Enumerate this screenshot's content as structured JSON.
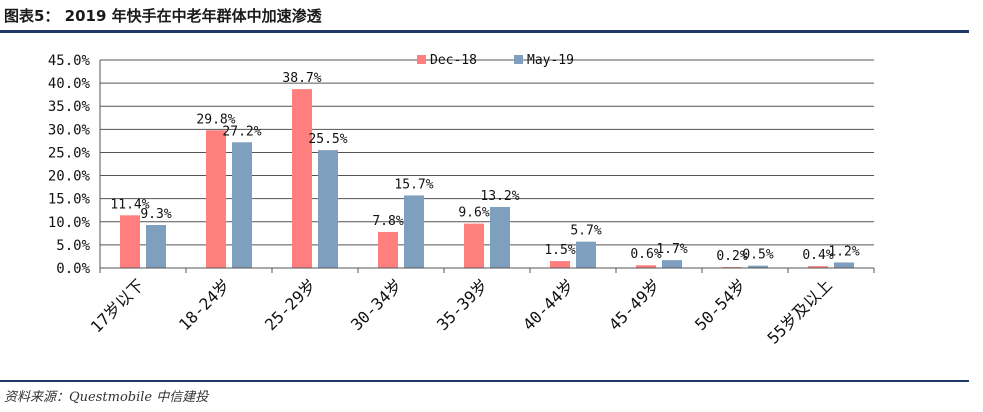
{
  "figure": {
    "title": "图表5： 2019 年快手在中老年群体中加速渗透",
    "source": "资料来源：Questmobile 中信建投"
  },
  "colors": {
    "dec18": "#ff7f7f",
    "may19": "#7f9fbf",
    "rule": "#1f3864"
  },
  "chart_data": {
    "type": "bar",
    "categories": [
      "17岁以下",
      "18-24岁",
      "25-29岁",
      "30-34岁",
      "35-39岁",
      "40-44岁",
      "45-49岁",
      "50-54岁",
      "55岁及以上"
    ],
    "series": [
      {
        "name": "Dec-18",
        "values": [
          11.4,
          29.8,
          38.7,
          7.8,
          9.6,
          1.5,
          0.6,
          0.2,
          0.4
        ],
        "labels": [
          "11.4%",
          "29.8%",
          "38.7%",
          "7.8%",
          "9.6%",
          "1.5%",
          "0.6%",
          "0.2%",
          "0.4%"
        ]
      },
      {
        "name": "May-19",
        "values": [
          9.3,
          27.2,
          25.5,
          15.7,
          13.2,
          5.7,
          1.7,
          0.5,
          1.2
        ],
        "labels": [
          "9.3%",
          "27.2%",
          "25.5%",
          "15.7%",
          "13.2%",
          "5.7%",
          "1.7%",
          "0.5%",
          "1.2%"
        ]
      }
    ],
    "yticks": [
      "0.0%",
      "5.0%",
      "10.0%",
      "15.0%",
      "20.0%",
      "25.0%",
      "30.0%",
      "35.0%",
      "40.0%",
      "45.0%"
    ],
    "ylim": [
      0,
      45
    ],
    "ytick_step": 5,
    "grid": true,
    "legend_position": "top-center",
    "xlabel": "",
    "ylabel": ""
  }
}
